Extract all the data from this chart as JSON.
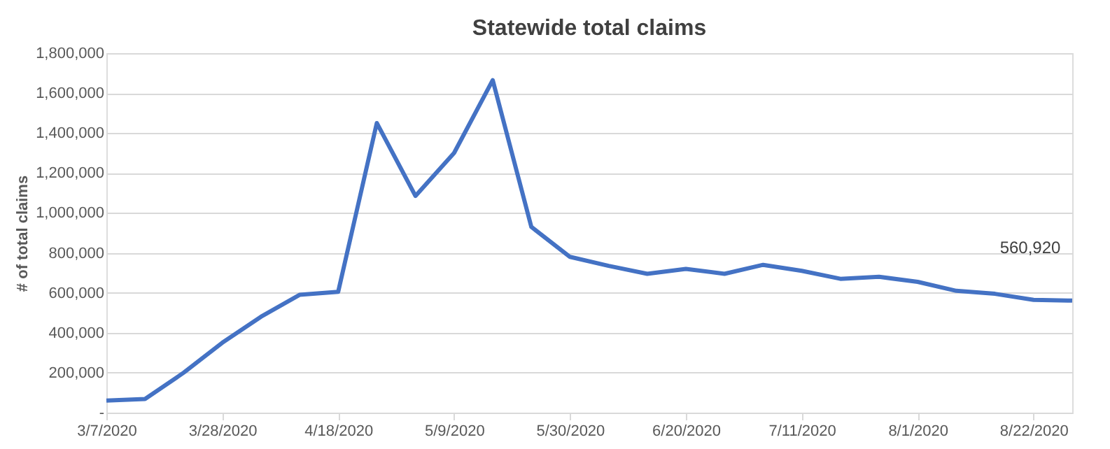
{
  "chart_data": {
    "type": "line",
    "title": "Statewide total claims",
    "ylabel": "# of total claims",
    "categories": [
      "3/7/2020",
      null,
      null,
      "3/28/2020",
      null,
      null,
      "4/18/2020",
      null,
      null,
      "5/9/2020",
      null,
      null,
      "5/30/2020",
      null,
      null,
      "6/20/2020",
      null,
      null,
      "7/11/2020",
      null,
      null,
      "8/1/2020",
      null,
      null,
      "8/22/2020",
      null
    ],
    "series": [
      {
        "color": "#4472c4",
        "values": [
          60000,
          68000,
          200000,
          350000,
          480000,
          590000,
          605000,
          1450000,
          1085000,
          1300000,
          1665000,
          930000,
          780000,
          735000,
          695000,
          720000,
          695000,
          740000,
          710000,
          670000,
          680000,
          655000,
          610000,
          595000,
          565000,
          560920
        ],
        "value_labels": [
          null,
          null,
          null,
          null,
          null,
          null,
          null,
          null,
          null,
          null,
          null,
          null,
          null,
          null,
          null,
          null,
          null,
          null,
          null,
          null,
          null,
          null,
          null,
          null,
          null,
          "560,920"
        ]
      }
    ],
    "ylim": [
      0,
      1800000
    ],
    "yticks": [
      {
        "value": 0,
        "label": "-"
      },
      {
        "value": 200000,
        "label": "200,000"
      },
      {
        "value": 400000,
        "label": "400,000"
      },
      {
        "value": 600000,
        "label": "600,000"
      },
      {
        "value": 800000,
        "label": "800,000"
      },
      {
        "value": 1000000,
        "label": "1,000,000"
      },
      {
        "value": 1200000,
        "label": "1,200,000"
      },
      {
        "value": 1400000,
        "label": "1,400,000"
      },
      {
        "value": 1600000,
        "label": "1,600,000"
      },
      {
        "value": 1800000,
        "label": "1,800,000"
      }
    ],
    "grid": "y",
    "marker": "none",
    "line_style": "solid"
  }
}
